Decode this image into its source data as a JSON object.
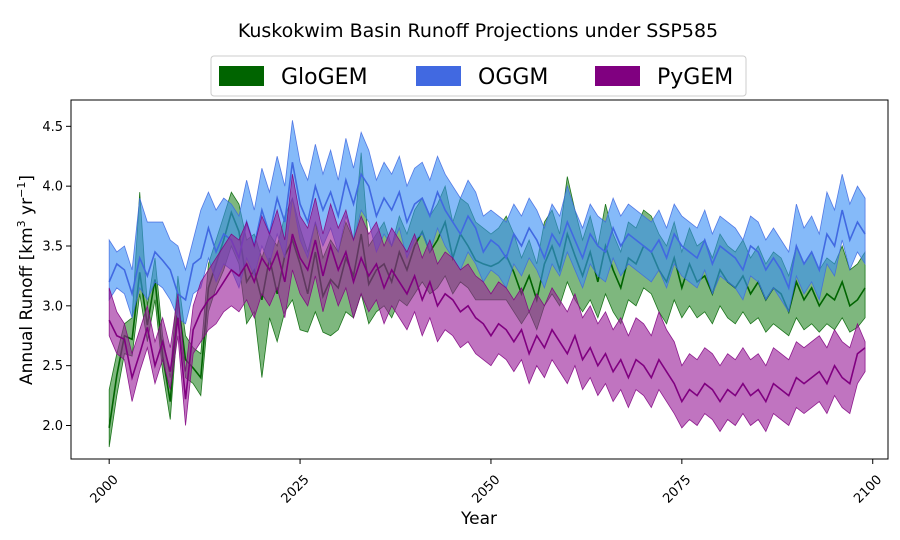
{
  "chart_data": {
    "type": "area",
    "title": "Kuskokwim Basin Runoff Projections under SSP585",
    "xlabel": "Year",
    "ylabel_main": "Annual Runoff [km",
    "ylabel_sup1": "3",
    "ylabel_mid": " yr",
    "ylabel_sup2": "−1",
    "ylabel_end": "]",
    "xlim": [
      1995,
      2102
    ],
    "ylim": [
      1.72,
      4.72
    ],
    "x_ticks": [
      2000,
      2025,
      2050,
      2075,
      2100
    ],
    "y_ticks": [
      "2.0",
      "2.5",
      "3.0",
      "3.5",
      "4.0",
      "4.5"
    ],
    "legend_position": "top-center",
    "x_start": 2000,
    "series": [
      {
        "name": "GloGEM",
        "line_color": "#006400",
        "fill_color": "#2e8b2e",
        "fill_opacity": 0.62,
        "values": [
          1.98,
          2.42,
          2.75,
          2.72,
          3.28,
          2.84,
          3.22,
          2.58,
          2.2,
          3.05,
          2.55,
          2.48,
          2.4,
          3.15,
          3.35,
          3.55,
          3.78,
          3.62,
          3.2,
          3.3,
          3.05,
          3.4,
          3.1,
          3.42,
          3.55,
          3.35,
          3.1,
          3.45,
          3.08,
          3.22,
          3.15,
          3.4,
          3.25,
          3.6,
          3.18,
          3.3,
          3.35,
          3.2,
          3.45,
          3.3,
          3.5,
          3.62,
          3.45,
          3.55,
          3.7,
          3.4,
          3.6,
          3.5,
          3.38,
          3.35,
          3.33,
          3.36,
          3.42,
          3.28,
          3.1,
          3.25,
          3.05,
          3.35,
          3.5,
          3.3,
          3.6,
          3.42,
          3.25,
          3.45,
          3.2,
          3.5,
          3.3,
          3.15,
          3.4,
          3.35,
          3.5,
          3.45,
          3.3,
          3.2,
          3.4,
          3.15,
          3.35,
          3.2,
          3.25,
          3.1,
          3.3,
          3.2,
          3.15,
          3.25,
          3.1,
          3.2,
          3.05,
          3.15,
          3.1,
          2.95,
          3.2,
          3.05,
          3.15,
          3.0,
          3.1,
          3.05,
          3.2,
          3.0,
          3.05,
          3.15
        ],
        "lower": [
          1.82,
          2.25,
          2.6,
          2.58,
          3.1,
          2.7,
          3.05,
          2.45,
          2.05,
          2.9,
          2.4,
          2.35,
          2.25,
          2.95,
          3.15,
          3.3,
          3.5,
          3.35,
          2.85,
          2.95,
          2.4,
          2.9,
          2.7,
          2.95,
          3.05,
          2.8,
          2.78,
          2.95,
          2.78,
          2.75,
          2.8,
          2.95,
          2.9,
          3.1,
          2.85,
          2.95,
          3.0,
          2.9,
          3.05,
          3.0,
          3.1,
          3.2,
          3.1,
          3.15,
          3.25,
          3.1,
          3.2,
          3.15,
          3.05,
          3.05,
          3.05,
          3.05,
          3.05,
          2.95,
          2.85,
          2.95,
          2.8,
          3.0,
          3.1,
          3.0,
          3.2,
          3.05,
          2.95,
          3.05,
          2.9,
          3.1,
          2.95,
          2.85,
          3.05,
          3.0,
          3.15,
          3.1,
          2.95,
          2.85,
          3.05,
          2.9,
          3.0,
          2.9,
          2.95,
          2.85,
          3.0,
          2.9,
          2.85,
          2.95,
          2.85,
          2.9,
          2.78,
          2.85,
          2.8,
          2.75,
          2.9,
          2.8,
          2.85,
          2.78,
          2.85,
          2.8,
          2.9,
          2.78,
          2.82,
          2.9
        ],
        "upper": [
          2.3,
          2.6,
          2.85,
          2.9,
          3.95,
          3.0,
          3.4,
          2.75,
          2.4,
          3.25,
          2.75,
          2.65,
          2.6,
          3.35,
          3.55,
          3.75,
          3.95,
          3.85,
          3.55,
          3.6,
          3.4,
          3.6,
          3.5,
          3.75,
          3.9,
          3.65,
          3.45,
          3.7,
          3.4,
          3.55,
          3.45,
          3.7,
          3.55,
          4.28,
          3.5,
          3.6,
          3.7,
          3.5,
          3.75,
          3.6,
          3.8,
          3.9,
          3.75,
          3.85,
          4.0,
          3.7,
          3.9,
          3.85,
          3.7,
          3.65,
          3.6,
          3.65,
          3.75,
          3.6,
          3.4,
          3.55,
          3.35,
          3.7,
          3.8,
          3.6,
          4.08,
          3.8,
          3.55,
          3.75,
          3.5,
          3.85,
          3.6,
          3.45,
          3.7,
          3.65,
          3.8,
          3.75,
          3.6,
          3.5,
          3.7,
          3.45,
          3.65,
          3.5,
          3.55,
          3.4,
          3.6,
          3.5,
          3.45,
          3.55,
          3.4,
          3.5,
          3.35,
          3.45,
          3.4,
          3.25,
          3.5,
          3.35,
          3.45,
          3.3,
          3.4,
          3.35,
          3.5,
          3.3,
          3.35,
          3.45
        ]
      },
      {
        "name": "OGGM",
        "line_color": "#4169e1",
        "fill_color": "#3a8ff5",
        "fill_opacity": 0.62,
        "values": [
          3.2,
          3.35,
          3.3,
          3.1,
          3.4,
          3.25,
          3.45,
          3.38,
          3.3,
          3.1,
          3.05,
          3.35,
          3.4,
          3.65,
          3.45,
          3.6,
          3.55,
          3.4,
          3.7,
          3.5,
          3.8,
          3.6,
          3.9,
          3.7,
          4.2,
          3.85,
          3.7,
          4.0,
          3.8,
          3.95,
          3.75,
          4.05,
          3.85,
          4.1,
          4.0,
          3.75,
          3.9,
          3.8,
          3.95,
          3.7,
          3.85,
          3.9,
          3.75,
          3.95,
          3.8,
          3.7,
          3.6,
          3.75,
          3.65,
          3.45,
          3.55,
          3.5,
          3.4,
          3.6,
          3.5,
          3.65,
          3.55,
          3.4,
          3.6,
          3.5,
          3.7,
          3.55,
          3.4,
          3.6,
          3.5,
          3.45,
          3.65,
          3.5,
          3.6,
          3.55,
          3.5,
          3.45,
          3.55,
          3.4,
          3.6,
          3.5,
          3.45,
          3.4,
          3.55,
          3.35,
          3.5,
          3.45,
          3.4,
          3.3,
          3.5,
          3.45,
          3.3,
          3.4,
          3.3,
          3.15,
          3.5,
          3.35,
          3.45,
          3.3,
          3.6,
          3.5,
          3.8,
          3.55,
          3.7,
          3.6
        ],
        "lower": [
          3.05,
          3.15,
          3.1,
          2.9,
          3.15,
          3.05,
          3.2,
          3.15,
          3.05,
          2.9,
          2.85,
          3.1,
          3.15,
          3.4,
          3.2,
          3.35,
          3.3,
          3.15,
          3.4,
          3.25,
          3.5,
          3.35,
          3.6,
          3.4,
          3.9,
          3.55,
          3.4,
          3.7,
          3.5,
          3.65,
          3.45,
          3.75,
          3.55,
          3.8,
          3.7,
          3.45,
          3.6,
          3.5,
          3.65,
          3.4,
          3.55,
          3.6,
          3.45,
          3.65,
          3.5,
          3.4,
          3.3,
          3.45,
          3.35,
          3.2,
          3.3,
          3.25,
          3.15,
          3.35,
          3.25,
          3.4,
          3.3,
          3.15,
          3.35,
          3.25,
          3.45,
          3.3,
          3.15,
          3.35,
          3.25,
          3.2,
          3.4,
          3.25,
          3.35,
          3.3,
          3.25,
          3.2,
          3.3,
          3.15,
          3.35,
          3.25,
          3.2,
          3.15,
          3.3,
          3.1,
          3.25,
          3.2,
          3.15,
          3.05,
          3.25,
          3.2,
          3.05,
          3.15,
          3.05,
          2.95,
          3.25,
          3.1,
          3.2,
          3.05,
          3.35,
          3.25,
          3.55,
          3.3,
          3.45,
          3.35
        ],
        "upper": [
          3.55,
          3.45,
          3.5,
          3.3,
          3.9,
          3.7,
          3.7,
          3.7,
          3.55,
          3.5,
          3.3,
          3.55,
          3.8,
          3.95,
          3.8,
          3.9,
          3.85,
          3.75,
          4.05,
          3.8,
          4.15,
          3.95,
          4.25,
          4.0,
          4.55,
          4.2,
          4.05,
          4.35,
          4.1,
          4.3,
          4.05,
          4.4,
          4.15,
          4.45,
          4.3,
          4.05,
          4.2,
          4.1,
          4.25,
          4.0,
          4.15,
          4.2,
          4.05,
          4.25,
          4.1,
          4.0,
          3.9,
          4.05,
          3.95,
          3.75,
          3.8,
          3.75,
          3.7,
          3.85,
          3.75,
          3.9,
          3.8,
          3.65,
          3.85,
          3.75,
          4.0,
          3.8,
          3.65,
          3.85,
          3.75,
          3.7,
          3.9,
          3.75,
          3.85,
          3.8,
          3.75,
          3.7,
          3.8,
          3.65,
          3.85,
          3.75,
          3.7,
          3.65,
          3.8,
          3.6,
          3.75,
          3.7,
          3.65,
          3.55,
          3.75,
          3.7,
          3.55,
          3.65,
          3.55,
          3.45,
          3.85,
          3.65,
          3.75,
          3.6,
          3.95,
          3.8,
          4.1,
          3.85,
          4.0,
          3.9
        ]
      },
      {
        "name": "PyGEM",
        "line_color": "#800080",
        "fill_color": "#9a1f9a",
        "fill_opacity": 0.62,
        "values": [
          2.88,
          2.75,
          2.72,
          2.4,
          2.6,
          2.82,
          2.5,
          2.7,
          2.45,
          2.9,
          2.22,
          2.8,
          2.95,
          3.05,
          3.1,
          3.2,
          3.3,
          3.25,
          3.35,
          3.2,
          3.4,
          3.3,
          3.45,
          3.2,
          3.6,
          3.4,
          3.3,
          3.55,
          3.25,
          3.5,
          3.3,
          3.45,
          3.2,
          3.4,
          3.25,
          3.35,
          3.15,
          3.3,
          3.2,
          3.1,
          3.25,
          3.05,
          3.2,
          3.0,
          3.1,
          3.05,
          2.95,
          3.0,
          2.9,
          2.85,
          2.75,
          2.85,
          2.8,
          2.7,
          2.8,
          2.6,
          2.75,
          2.65,
          2.8,
          2.7,
          2.6,
          2.75,
          2.55,
          2.65,
          2.5,
          2.6,
          2.45,
          2.55,
          2.4,
          2.55,
          2.5,
          2.4,
          2.55,
          2.45,
          2.35,
          2.2,
          2.3,
          2.25,
          2.35,
          2.3,
          2.2,
          2.3,
          2.25,
          2.35,
          2.25,
          2.3,
          2.2,
          2.35,
          2.3,
          2.25,
          2.4,
          2.35,
          2.4,
          2.45,
          2.35,
          2.5,
          2.4,
          2.35,
          2.6,
          2.65
        ],
        "lower": [
          2.75,
          2.6,
          2.55,
          2.2,
          2.45,
          2.65,
          2.35,
          2.55,
          2.3,
          2.75,
          2.0,
          2.6,
          2.7,
          2.8,
          2.85,
          2.95,
          3.0,
          2.95,
          3.05,
          2.9,
          3.1,
          3.0,
          3.15,
          2.9,
          3.3,
          3.1,
          3.0,
          3.25,
          2.95,
          3.2,
          3.0,
          3.15,
          2.9,
          3.1,
          2.95,
          3.05,
          2.85,
          3.0,
          2.9,
          2.8,
          2.95,
          2.75,
          2.9,
          2.7,
          2.8,
          2.75,
          2.65,
          2.7,
          2.6,
          2.55,
          2.5,
          2.6,
          2.55,
          2.45,
          2.55,
          2.35,
          2.5,
          2.4,
          2.55,
          2.45,
          2.35,
          2.5,
          2.3,
          2.4,
          2.25,
          2.35,
          2.2,
          2.3,
          2.15,
          2.3,
          2.25,
          2.15,
          2.3,
          2.2,
          2.1,
          1.98,
          2.05,
          2.0,
          2.1,
          2.05,
          1.95,
          2.05,
          2.0,
          2.1,
          2.0,
          2.05,
          1.95,
          2.1,
          2.05,
          2.0,
          2.15,
          2.1,
          2.15,
          2.2,
          2.1,
          2.25,
          2.15,
          2.1,
          2.35,
          2.45
        ],
        "upper": [
          3.15,
          2.95,
          2.85,
          2.6,
          2.8,
          3.0,
          2.7,
          2.9,
          2.65,
          3.1,
          2.45,
          3.0,
          3.2,
          3.3,
          3.4,
          3.5,
          3.6,
          3.55,
          3.7,
          3.5,
          3.75,
          3.6,
          3.8,
          3.55,
          4.1,
          3.75,
          3.65,
          3.9,
          3.6,
          3.85,
          3.65,
          3.8,
          3.55,
          3.75,
          3.6,
          3.7,
          3.5,
          3.65,
          3.55,
          3.45,
          3.6,
          3.4,
          3.55,
          3.35,
          3.45,
          3.4,
          3.3,
          3.35,
          3.25,
          3.2,
          3.1,
          3.2,
          3.15,
          3.05,
          3.15,
          2.95,
          3.1,
          3.0,
          3.15,
          3.05,
          2.95,
          3.1,
          2.9,
          3.0,
          2.85,
          2.95,
          2.8,
          2.9,
          2.75,
          2.9,
          2.85,
          2.75,
          2.95,
          2.8,
          2.7,
          2.5,
          2.6,
          2.55,
          2.65,
          2.6,
          2.5,
          2.6,
          2.55,
          2.65,
          2.55,
          2.6,
          2.5,
          2.65,
          2.6,
          2.55,
          2.7,
          2.65,
          2.7,
          2.75,
          2.65,
          2.8,
          2.7,
          2.65,
          2.85,
          2.7
        ]
      }
    ]
  }
}
